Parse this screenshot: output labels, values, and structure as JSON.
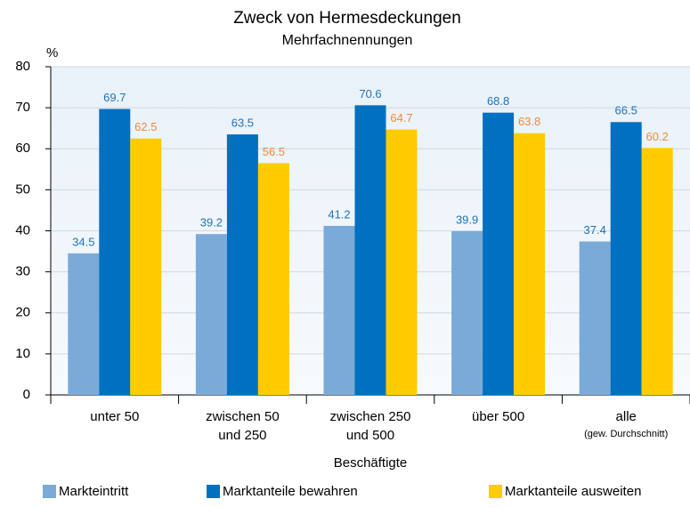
{
  "chart_data": {
    "type": "bar",
    "title": "Zweck von Hermesdeckungen",
    "subtitle": "Mehrfachnennungen",
    "y_label": "%",
    "x_label": "Beschäftigte",
    "categories": [
      "unter 50",
      "zwischen 50\nund 250",
      "zwischen 250\nund 500",
      "über 500",
      "alle"
    ],
    "category_notes": [
      null,
      null,
      null,
      null,
      "(gew. Durchschnitt)"
    ],
    "series": [
      {
        "name": "Markteintritt",
        "color": "#7aaad8",
        "label_color": "#1f73b7",
        "values": [
          34.5,
          39.2,
          41.2,
          39.9,
          37.4
        ]
      },
      {
        "name": "Marktanteile bewahren",
        "color": "#0070c0",
        "label_color": "#1f73b7",
        "values": [
          69.7,
          63.5,
          70.6,
          68.8,
          66.5
        ]
      },
      {
        "name": "Marktanteile ausweiten",
        "color": "#ffcc00",
        "label_color": "#ee8a3a",
        "values": [
          62.5,
          56.5,
          64.7,
          63.8,
          60.2
        ]
      }
    ],
    "ylim": [
      0,
      80
    ],
    "yticks": [
      0,
      10,
      20,
      30,
      40,
      50,
      60,
      70,
      80
    ],
    "grid": true,
    "legend": "bottom"
  }
}
